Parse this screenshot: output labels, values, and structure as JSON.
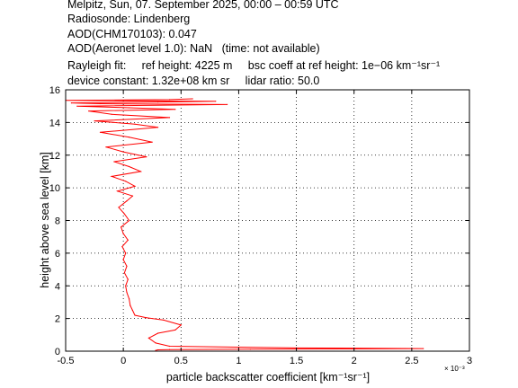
{
  "header": {
    "line1": "Melpitz, Sun, 07. September 2025, 00:00 – 00:59 UTC",
    "line2": "Radiosonde: Lindenberg",
    "line3": "AOD(CHM170103): 0.047",
    "line4": "AOD(Aeronet level 1.0): NaN   (time: not available)",
    "line5": "Rayleigh fit:     ref height: 4225 m     bsc coeff at ref height: 1e−06 km⁻¹sr⁻¹",
    "line6": "device constant: 1.32e+08 km sr     lidar ratio: 50.0"
  },
  "chart_data": {
    "type": "line",
    "xlabel": "particle backscatter coefficient [km⁻¹sr⁻¹]",
    "ylabel": "height above sea level [km]",
    "x_multiplier": "× 10⁻³",
    "xlim": [
      -0.5,
      3
    ],
    "ylim": [
      0,
      16
    ],
    "xticks": [
      "-0.5",
      "0",
      "0.5",
      "1",
      "1.5",
      "2",
      "2.5",
      "3"
    ],
    "yticks": [
      "0",
      "2",
      "4",
      "6",
      "8",
      "10",
      "12",
      "14",
      "16"
    ],
    "grid": true,
    "series_color": "#ff0000",
    "series": [
      {
        "x": [
          0.28,
          0.3,
          0.4,
          1.1,
          2.0,
          2.6,
          1.5,
          0.4,
          0.28,
          0.22,
          0.3,
          0.45,
          0.5,
          0.35,
          0.2,
          0.1,
          0.08,
          0.06,
          0.05,
          0.03,
          0.02,
          0.04,
          0.01,
          0.03,
          0.0,
          0.02,
          -0.01,
          0.04,
          0.0,
          -0.02,
          0.05,
          0.01,
          -0.04,
          0.03,
          0.08,
          -0.05,
          0.1,
          0.02,
          -0.1,
          0.15,
          0.05,
          -0.08,
          0.2,
          0.0,
          -0.15,
          0.25,
          0.05,
          -0.2,
          0.3,
          0.1,
          -0.25,
          0.4,
          -0.1,
          -0.3,
          0.45,
          0.05,
          -0.4,
          0.9,
          -0.2,
          -0.45,
          0.3,
          0.8,
          -0.5,
          0.4,
          0.6
        ],
        "y": [
          0.05,
          0.08,
          0.1,
          0.12,
          0.14,
          0.16,
          0.2,
          0.3,
          0.5,
          0.8,
          1.1,
          1.3,
          1.6,
          1.9,
          2.05,
          2.2,
          2.5,
          2.8,
          3.2,
          3.6,
          4.0,
          4.4,
          4.8,
          5.2,
          5.6,
          6.0,
          6.4,
          6.8,
          7.2,
          7.6,
          8.0,
          8.4,
          8.8,
          9.2,
          9.5,
          9.8,
          10.1,
          10.4,
          10.7,
          11.0,
          11.3,
          11.6,
          11.9,
          12.2,
          12.5,
          12.8,
          13.1,
          13.4,
          13.7,
          13.9,
          14.1,
          14.3,
          14.5,
          14.7,
          14.8,
          14.9,
          15.0,
          15.1,
          15.15,
          15.2,
          15.25,
          15.3,
          15.35,
          15.4,
          15.45
        ]
      }
    ]
  }
}
